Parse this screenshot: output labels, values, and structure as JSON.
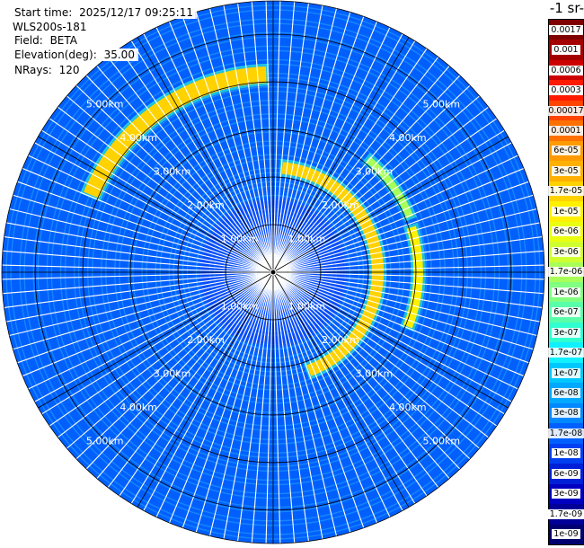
{
  "header": {
    "start_time_label": "Start time:",
    "start_time": "2025/12/17 09:25:11",
    "instrument": "WLS200s-181",
    "field_label": "Field:",
    "field": "BETA",
    "elevation_label": "Elevation(deg):",
    "elevation": "35.00",
    "nrays_label": "NRays:",
    "nrays": "120"
  },
  "colorbar": {
    "unit_fragment": "-1 sr-",
    "labels": [
      "0.0017",
      "0.001",
      "0.0006",
      "0.0003",
      "0.00017",
      "0.0001",
      "6e-05",
      "3e-05",
      "1.7e-05",
      "1e-05",
      "6e-06",
      "3e-06",
      "1.7e-06",
      "1e-06",
      "6e-07",
      "3e-07",
      "1.7e-07",
      "1e-07",
      "6e-08",
      "3e-08",
      "1.7e-08",
      "1e-08",
      "6e-09",
      "3e-09",
      "1.7e-09",
      "1e-09"
    ],
    "colors": [
      "#7f0000",
      "#a40000",
      "#cc0000",
      "#ff1a00",
      "#ff4400",
      "#ff7000",
      "#ff9a00",
      "#ffb000",
      "#ffd200",
      "#fff000",
      "#eaff10",
      "#d0ff30",
      "#a8ff58",
      "#80ff80",
      "#58ffa8",
      "#30ffd0",
      "#10f0ff",
      "#00c8ff",
      "#00a8ff",
      "#0088ff",
      "#0060ff",
      "#0040f0",
      "#0020d8",
      "#0000c0",
      "#000098",
      "#000070"
    ],
    "label_light_indices": [
      0,
      1,
      2,
      3,
      21,
      22,
      23,
      24,
      25
    ]
  },
  "chart_data": {
    "type": "heatmap",
    "projection": "polar",
    "title": "",
    "field": "BETA",
    "elevation_deg": 35.0,
    "nrays": 120,
    "range_max_km": 5.7,
    "range_rings_km": [
      1,
      2,
      3,
      4,
      5
    ],
    "range_ring_labels": [
      "1.00km",
      "2.00km",
      "3.00km",
      "4.00km",
      "5.00km"
    ],
    "label_bearings_deg": [
      45,
      135,
      225,
      315
    ],
    "background_beta": "2e-08",
    "features": [
      {
        "type": "arc",
        "range_km": 4.15,
        "azimuth_from_deg": 293,
        "azimuth_to_deg": 358,
        "width_km": 0.35,
        "beta": "1.5e-05"
      },
      {
        "type": "arc",
        "range_km": 2.2,
        "azimuth_from_deg": 5,
        "azimuth_to_deg": 160,
        "width_km": 0.25,
        "beta": "1.7e-05"
      },
      {
        "type": "arc",
        "range_km": 3.05,
        "azimuth_from_deg": 72,
        "azimuth_to_deg": 112,
        "width_km": 0.2,
        "beta": "1e-05"
      },
      {
        "type": "arc",
        "range_km": 3.1,
        "azimuth_from_deg": 40,
        "azimuth_to_deg": 68,
        "width_km": 0.15,
        "beta": "1.7e-06"
      }
    ]
  }
}
